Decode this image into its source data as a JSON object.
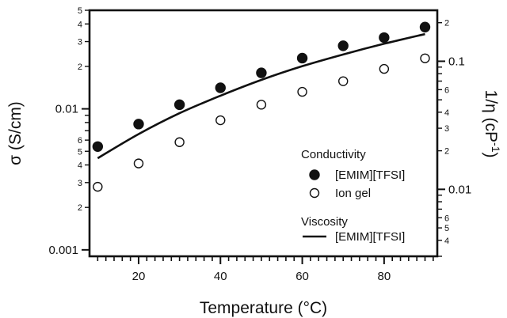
{
  "chart_data": {
    "type": "scatter",
    "xlabel": "Temperature (°C)",
    "ylabel": "σ (S/cm)",
    "y2label": "1/η (cP",
    "y2label_sup": "-1",
    "y2label_tail": ")",
    "xlim": [
      8,
      93
    ],
    "ylim": [
      0.0009,
      0.05
    ],
    "ylog": true,
    "y2lim": [
      0.003,
      0.25
    ],
    "y2log": true,
    "x_ticks": [
      20,
      40,
      60,
      80
    ],
    "y_major_ticks": [
      {
        "value": 0.001,
        "label": "0.001"
      },
      {
        "value": 0.01,
        "label": "0.01"
      }
    ],
    "y_minor_labeled": [
      {
        "value": 0.002,
        "label": "2"
      },
      {
        "value": 0.003,
        "label": "3"
      },
      {
        "value": 0.004,
        "label": "4"
      },
      {
        "value": 0.005,
        "label": "5"
      },
      {
        "value": 0.006,
        "label": "6"
      },
      {
        "value": 0.02,
        "label": "2"
      },
      {
        "value": 0.03,
        "label": "3"
      },
      {
        "value": 0.04,
        "label": "4"
      },
      {
        "value": 0.05,
        "label": "5"
      }
    ],
    "y2_major_ticks": [
      {
        "value": 0.01,
        "label": "0.01"
      },
      {
        "value": 0.1,
        "label": "0.1"
      }
    ],
    "y2_minor_labeled": [
      {
        "value": 0.004,
        "label": "4"
      },
      {
        "value": 0.005,
        "label": "5"
      },
      {
        "value": 0.006,
        "label": "6"
      },
      {
        "value": 0.02,
        "label": "2"
      },
      {
        "value": 0.03,
        "label": "3"
      },
      {
        "value": 0.04,
        "label": "4"
      },
      {
        "value": 0.06,
        "label": "6"
      },
      {
        "value": 0.2,
        "label": "2"
      }
    ],
    "legend": {
      "placement": "lower-right",
      "group1_title": "Conductivity",
      "group2_title": "Viscosity",
      "entries": [
        {
          "label": "[EMIM][TFSI]",
          "marker": "filled-circle"
        },
        {
          "label": "Ion gel",
          "marker": "open-circle"
        },
        {
          "label": "[EMIM][TFSI]",
          "marker": "line"
        }
      ]
    },
    "series": [
      {
        "name": "[EMIM][TFSI]",
        "group": "Conductivity",
        "marker": "filled-circle",
        "axis": "left",
        "x": [
          10,
          20,
          30,
          40,
          50,
          60,
          70,
          80,
          90
        ],
        "y": [
          0.0054,
          0.0078,
          0.0107,
          0.0141,
          0.018,
          0.0229,
          0.028,
          0.032,
          0.038
        ]
      },
      {
        "name": "Ion gel",
        "group": "Conductivity",
        "marker": "open-circle",
        "axis": "left",
        "x": [
          10,
          20,
          30,
          40,
          50,
          60,
          70,
          80,
          90
        ],
        "y": [
          0.0028,
          0.0041,
          0.0058,
          0.0083,
          0.0107,
          0.0132,
          0.0157,
          0.0192,
          0.0228
        ]
      },
      {
        "name": "[EMIM][TFSI]",
        "group": "Viscosity",
        "marker": "line",
        "axis": "right",
        "x": [
          10,
          20,
          30,
          40,
          50,
          60,
          70,
          80,
          90
        ],
        "y": [
          0.0175,
          0.027,
          0.0393,
          0.0538,
          0.0715,
          0.0915,
          0.113,
          0.137,
          0.163
        ]
      }
    ]
  }
}
